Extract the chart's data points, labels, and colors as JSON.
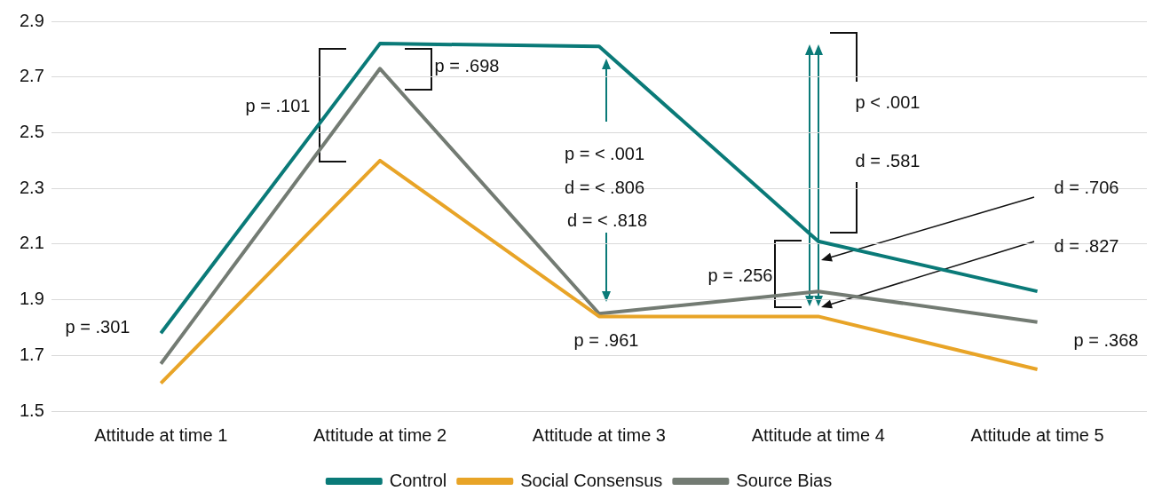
{
  "chart_data": {
    "type": "line",
    "categories": [
      "Attitude at time 1",
      "Attitude at time 2",
      "Attitude at time 3",
      "Attitude at time 4",
      "Attitude at time 5"
    ],
    "series": [
      {
        "name": "Control",
        "color": "#0a7a78",
        "values": [
          1.78,
          2.82,
          2.81,
          2.11,
          1.93
        ]
      },
      {
        "name": "Social Consensus",
        "color": "#e8a427",
        "values": [
          1.6,
          2.4,
          1.84,
          1.84,
          1.65
        ]
      },
      {
        "name": "Source Bias",
        "color": "#737b73",
        "values": [
          1.67,
          2.73,
          1.85,
          1.93,
          1.82
        ]
      }
    ],
    "ylim": [
      1.5,
      2.9
    ],
    "yticks": [
      1.5,
      1.7,
      1.9,
      2.1,
      2.3,
      2.5,
      2.7,
      2.9
    ],
    "grid": "y",
    "legend": "bottom",
    "marker": "none",
    "line_style": "solid",
    "annotations": [
      "p = .301",
      "p = .101",
      "p = .698",
      "p = < .001",
      "d = < .806",
      "d = < .818",
      "p = .961",
      "p = .256",
      "p < .001",
      "d = .581",
      "d = .706",
      "d = .827",
      "p = .368"
    ]
  }
}
